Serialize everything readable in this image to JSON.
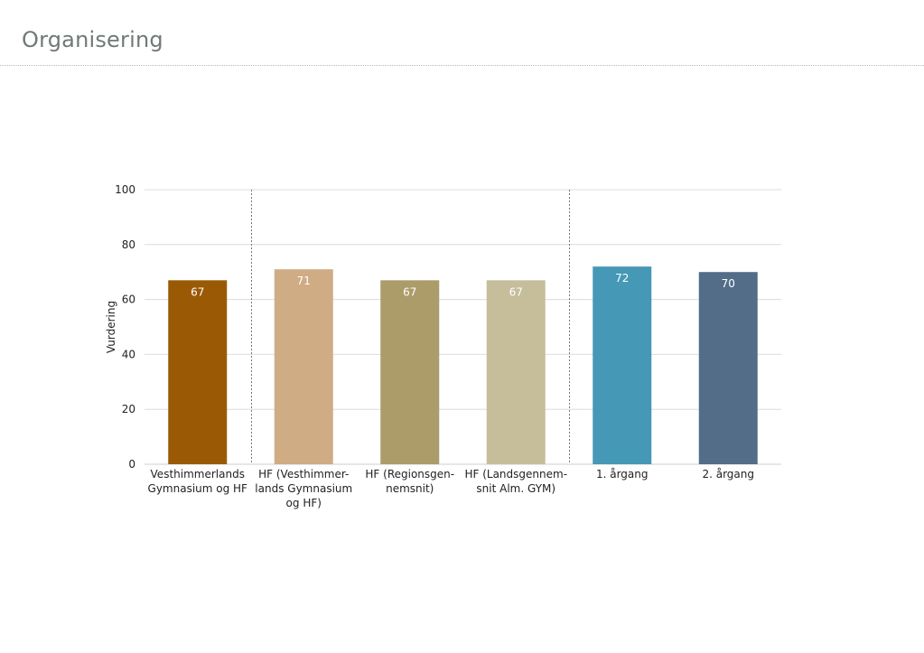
{
  "page": {
    "title": "Organisering"
  },
  "chart_data": {
    "type": "bar",
    "ylabel": "Vurdering",
    "xlabel": "",
    "ylim": [
      0,
      100
    ],
    "yticks": [
      0,
      20,
      40,
      60,
      80,
      100
    ],
    "grid": true,
    "legend": "none",
    "categories": [
      [
        "Vesthimmerlands",
        "Gymnasium og HF"
      ],
      [
        "HF (Vesthimmer-",
        "lands Gymnasium",
        "og HF)"
      ],
      [
        "HF (Regionsgen-",
        "nemsnit)"
      ],
      [
        "HF (Landsgennem-",
        "snit Alm. GYM)"
      ],
      [
        "1. årgang"
      ],
      [
        "2. årgang"
      ]
    ],
    "values": [
      67,
      71,
      67,
      67,
      72,
      70
    ],
    "data_labels": [
      "67",
      "71",
      "67",
      "67",
      "72",
      "70"
    ],
    "colors": [
      "#9a5a05",
      "#cfac83",
      "#ab9c6a",
      "#c6bd9b",
      "#4598b6",
      "#536d89"
    ],
    "group_separators_after": [
      1,
      4
    ]
  }
}
